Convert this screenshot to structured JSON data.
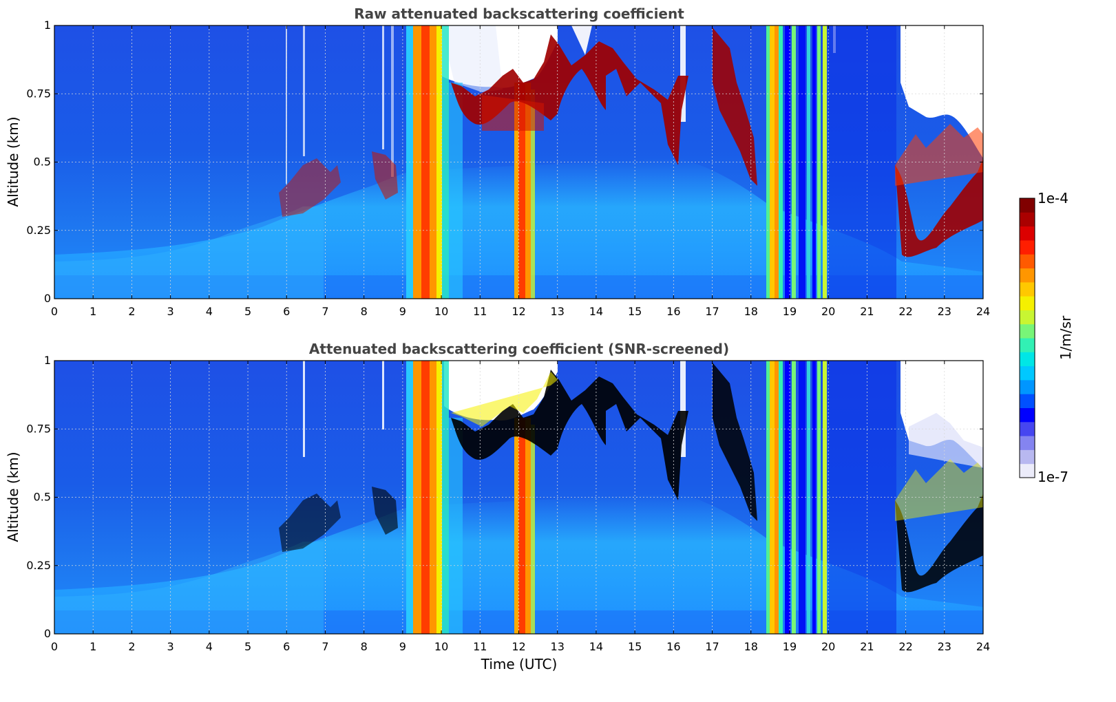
{
  "chart_data": [
    {
      "type": "heatmap",
      "title": "Raw attenuated backscattering coefficient",
      "ylabel": "Altitude (km)",
      "xlabel": "",
      "xlim": [
        0,
        24
      ],
      "ylim": [
        0,
        1
      ],
      "xticks": [
        "0",
        "1",
        "2",
        "3",
        "4",
        "5",
        "6",
        "7",
        "8",
        "9",
        "10",
        "11",
        "12",
        "13",
        "14",
        "15",
        "16",
        "17",
        "18",
        "19",
        "20",
        "21",
        "22",
        "23",
        "24"
      ],
      "yticks": [
        "0",
        "0.25",
        "0.5",
        "0.75",
        "1"
      ],
      "grid": true,
      "colormap": "jet",
      "approx_features": {
        "rain_or_fog_columns_utc": [
          [
            9.1,
            10.0
          ],
          [
            11.9,
            12.4
          ],
          [
            18.5,
            19.9
          ]
        ],
        "cloud_layer": [
          {
            "time_utc": [
              9.3,
              13.5
            ],
            "altitude_km": [
              0.62,
              0.85
            ]
          },
          {
            "time_utc": [
              13.5,
              16.3
            ],
            "altitude_km": [
              0.45,
              0.9
            ]
          },
          {
            "time_utc": [
              16.8,
              18.3
            ],
            "altitude_km": [
              0.4,
              1.0
            ]
          },
          {
            "time_utc": [
              21.8,
              24.0
            ],
            "altitude_km": [
              0.12,
              0.6
            ]
          }
        ],
        "boundary_layer_top_km": [
          {
            "time_utc": 0,
            "altitude_km": 0.15
          },
          {
            "time_utc": 6,
            "altitude_km": 0.3
          },
          {
            "time_utc": 8.5,
            "altitude_km": 0.45
          },
          {
            "time_utc": 16,
            "altitude_km": 0.55
          },
          {
            "time_utc": 21,
            "altitude_km": 0.25
          }
        ]
      }
    },
    {
      "type": "heatmap",
      "title": "Attenuated backscattering coefficient (SNR-screened)",
      "ylabel": "Altitude (km)",
      "xlabel": "Time (UTC)",
      "xlim": [
        0,
        24
      ],
      "ylim": [
        0,
        1
      ],
      "xticks": [
        "0",
        "1",
        "2",
        "3",
        "4",
        "5",
        "6",
        "7",
        "8",
        "9",
        "10",
        "11",
        "12",
        "13",
        "14",
        "15",
        "16",
        "17",
        "18",
        "19",
        "20",
        "21",
        "22",
        "23",
        "24"
      ],
      "yticks": [
        "0",
        "0.25",
        "0.5",
        "0.75",
        "1"
      ],
      "grid": true,
      "colormap": "jet",
      "saturated_color": "#000000"
    }
  ],
  "colorbar": {
    "max_label": "1e-4",
    "min_label": "1e-7",
    "unit_label": "1/m/sr",
    "colors": [
      "#ececfa",
      "#b8b8f0",
      "#8484f0",
      "#4646f0",
      "#0000ff",
      "#0050ff",
      "#0096ff",
      "#00c8ff",
      "#00e6e6",
      "#32f0b4",
      "#78f578",
      "#c8f532",
      "#f5f000",
      "#ffc800",
      "#ff9600",
      "#ff5a00",
      "#ff1e00",
      "#dc0000",
      "#aa0000",
      "#800000"
    ]
  }
}
